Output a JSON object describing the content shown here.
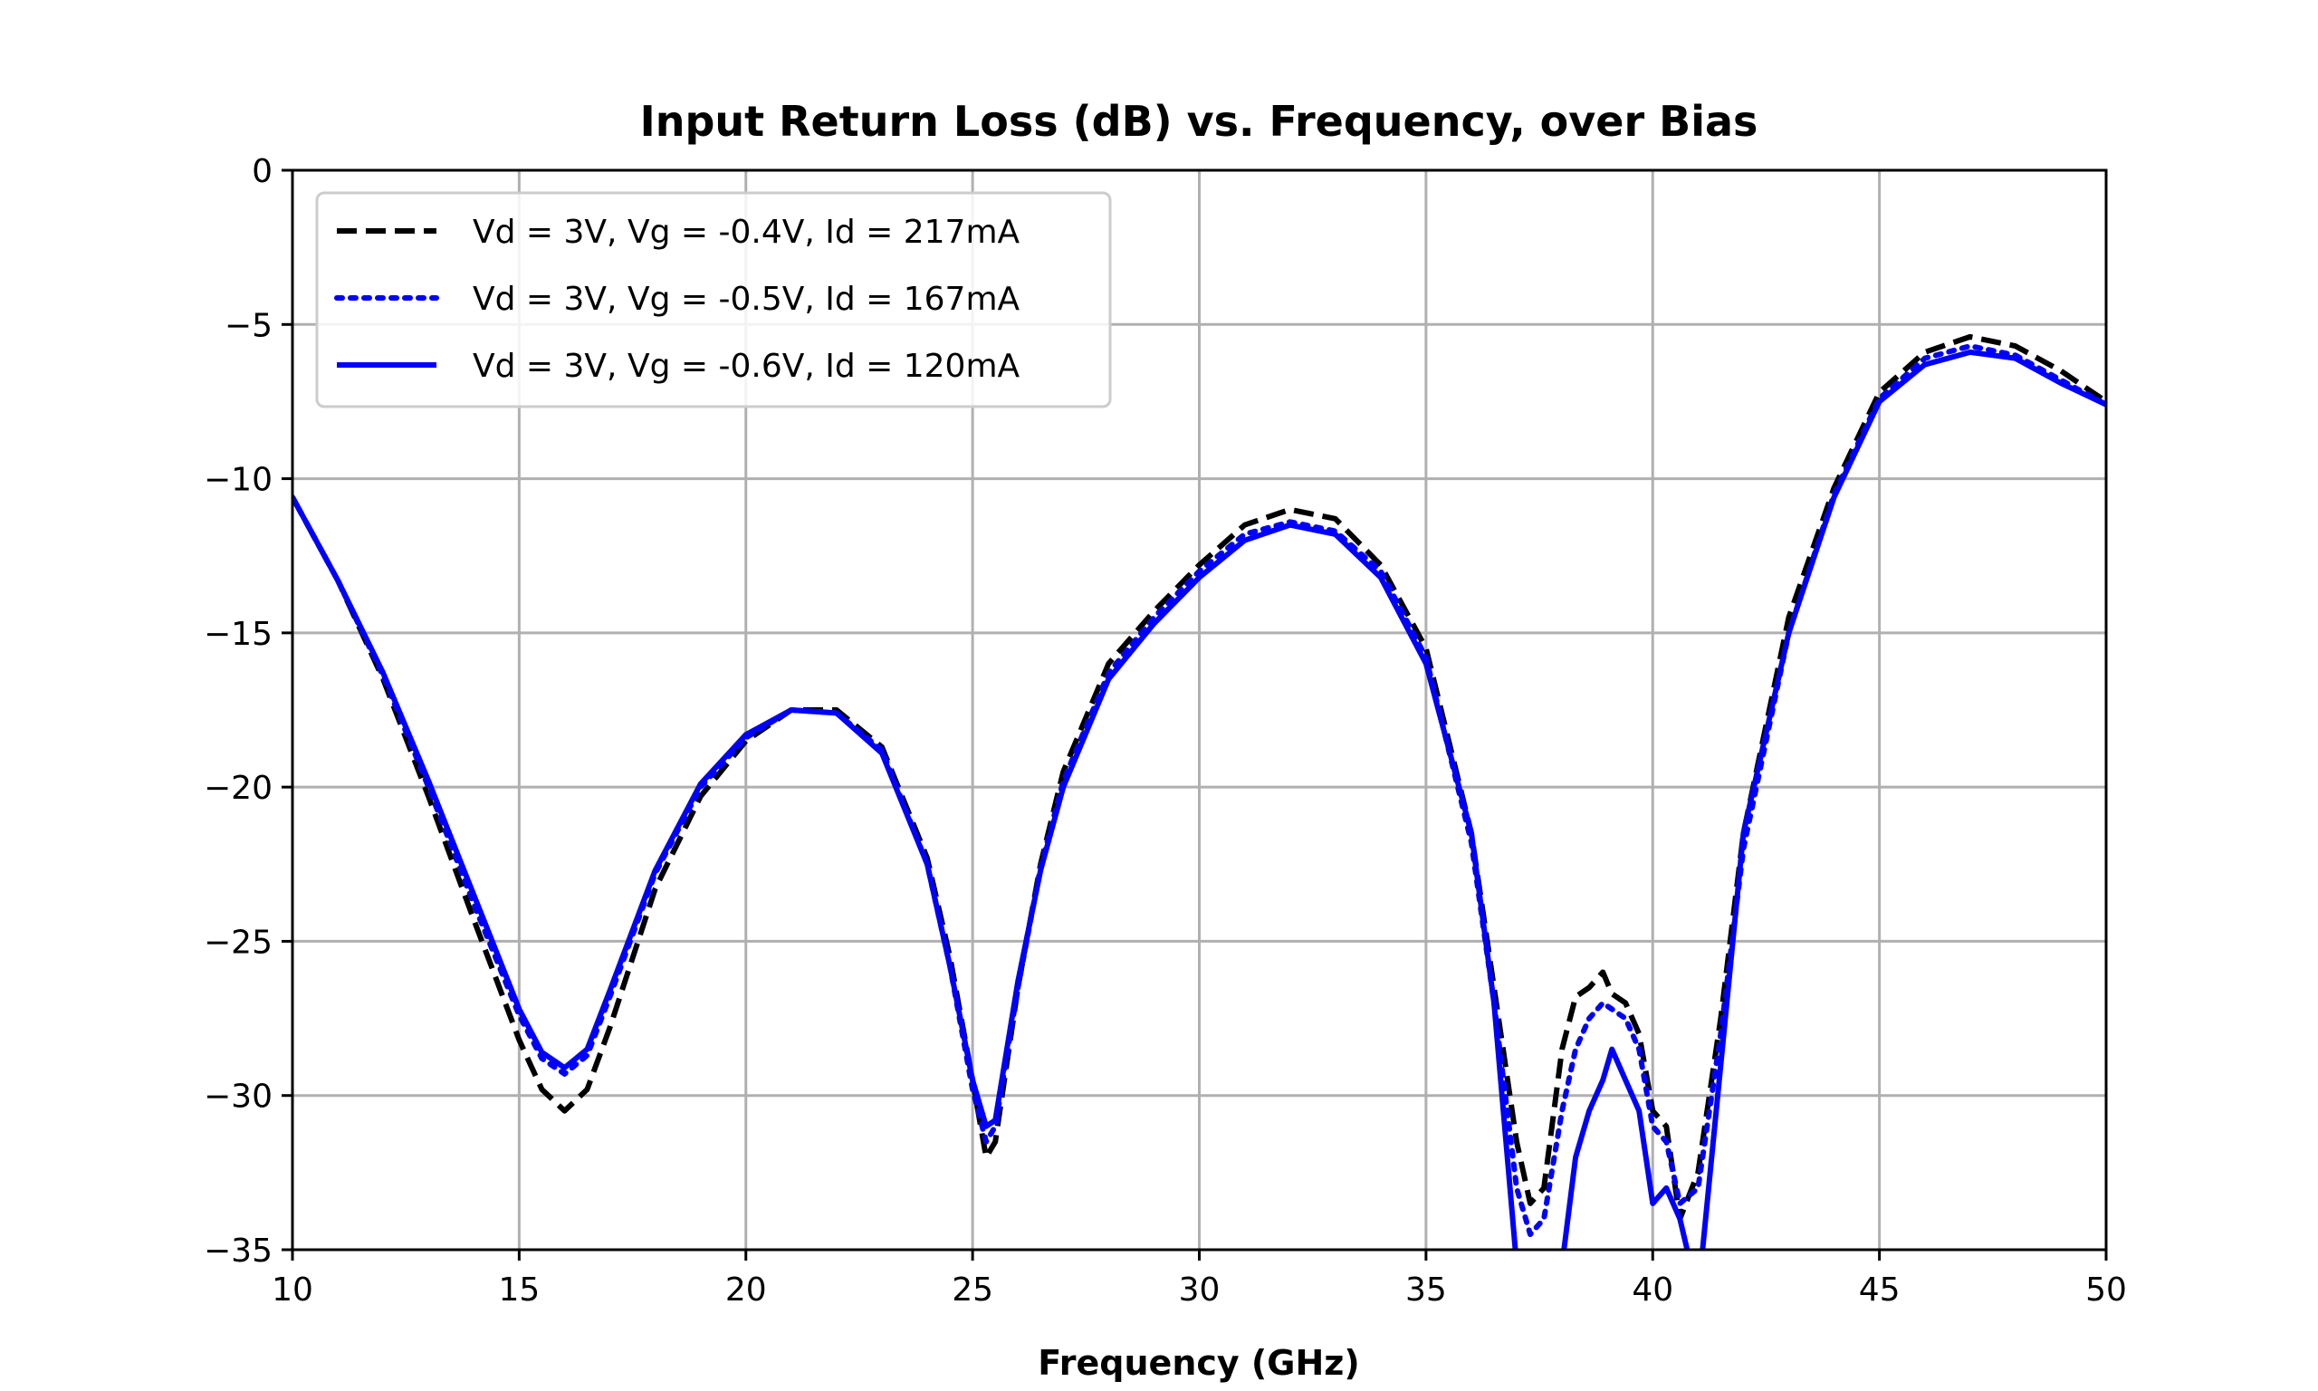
{
  "chart_data": {
    "type": "line",
    "title": "Input Return Loss (dB) vs. Frequency, over Bias",
    "xlabel": "Frequency (GHz)",
    "ylabel": "",
    "xlim": [
      10,
      50
    ],
    "ylim": [
      -35,
      0
    ],
    "xticks": [
      10,
      15,
      20,
      25,
      30,
      35,
      40,
      45,
      50
    ],
    "yticks": [
      0,
      -5,
      -10,
      -15,
      -20,
      -25,
      -30,
      -35
    ],
    "xtick_labels": [
      "10",
      "15",
      "20",
      "25",
      "30",
      "35",
      "40",
      "45",
      "50"
    ],
    "ytick_labels": [
      "0",
      "−5",
      "−10",
      "−15",
      "−20",
      "−25",
      "−30",
      "−35"
    ],
    "grid": true,
    "legend_position": "top-left",
    "series": [
      {
        "name": "Vd = 3V, Vg = -0.4V, Id = 217mA",
        "color": "#000000",
        "style": "dashed",
        "x": [
          10,
          11,
          12,
          13,
          14,
          15,
          15.5,
          16,
          16.5,
          17,
          18,
          19,
          20,
          21,
          22,
          23,
          24,
          24.5,
          25,
          25.3,
          25.5,
          26,
          26.5,
          27,
          28,
          29,
          30,
          31,
          32,
          33,
          34,
          35,
          36,
          36.5,
          37,
          37.3,
          37.6,
          38,
          38.3,
          38.6,
          38.9,
          39.1,
          39.4,
          39.7,
          40,
          40.3,
          40.6,
          41,
          41.5,
          42,
          43,
          44,
          45,
          46,
          47,
          48,
          49,
          50
        ],
        "y": [
          -10.6,
          -13.3,
          -16.5,
          -20.3,
          -24.3,
          -28.2,
          -29.8,
          -30.5,
          -29.8,
          -27.8,
          -23.3,
          -20.3,
          -18.5,
          -17.5,
          -17.5,
          -18.7,
          -22.3,
          -25.5,
          -29.5,
          -32.0,
          -31.5,
          -26.5,
          -22.5,
          -19.5,
          -16.0,
          -14.3,
          -12.8,
          -11.5,
          -11.0,
          -11.3,
          -12.8,
          -15.5,
          -21.5,
          -26.5,
          -31.5,
          -33.5,
          -33.0,
          -28.5,
          -26.8,
          -26.5,
          -26.0,
          -26.7,
          -27.0,
          -28.0,
          -30.5,
          -31.0,
          -34.0,
          -32.5,
          -27.5,
          -21.5,
          -14.5,
          -10.3,
          -7.2,
          -5.9,
          -5.4,
          -5.7,
          -6.5,
          -7.5
        ]
      },
      {
        "name": "Vd = 3V, Vg = -0.5V, Id = 167mA",
        "color": "#0000ff",
        "style": "dotted",
        "x": [
          10,
          11,
          12,
          13,
          14,
          15,
          15.5,
          16,
          16.5,
          17,
          18,
          19,
          20,
          21,
          22,
          23,
          24,
          24.5,
          25,
          25.3,
          25.5,
          26,
          26.5,
          27,
          28,
          29,
          30,
          31,
          32,
          33,
          34,
          35,
          36,
          36.5,
          37,
          37.3,
          37.6,
          38,
          38.3,
          38.6,
          38.9,
          39.1,
          39.4,
          39.7,
          40,
          40.3,
          40.6,
          41,
          41.5,
          42,
          43,
          44,
          45,
          46,
          47,
          48,
          49,
          50
        ],
        "y": [
          -10.6,
          -13.3,
          -16.4,
          -20.0,
          -23.8,
          -27.4,
          -28.8,
          -29.3,
          -28.7,
          -26.8,
          -22.8,
          -20.0,
          -18.4,
          -17.5,
          -17.6,
          -18.8,
          -22.5,
          -25.8,
          -29.8,
          -31.5,
          -31.0,
          -26.5,
          -22.6,
          -19.8,
          -16.3,
          -14.5,
          -13.0,
          -11.8,
          -11.4,
          -11.7,
          -13.0,
          -15.8,
          -21.8,
          -27.0,
          -33.0,
          -34.5,
          -34.0,
          -30.5,
          -28.5,
          -27.5,
          -27.0,
          -27.2,
          -27.5,
          -28.5,
          -31.0,
          -31.5,
          -33.5,
          -33.0,
          -28.0,
          -22.0,
          -15.0,
          -10.5,
          -7.4,
          -6.1,
          -5.7,
          -6.0,
          -6.8,
          -7.6
        ]
      },
      {
        "name": "Vd = 3V, Vg = -0.6V, Id = 120mA",
        "color": "#0000ff",
        "style": "solid",
        "x": [
          10,
          11,
          12,
          13,
          14,
          15,
          15.5,
          16,
          16.5,
          17,
          18,
          19,
          20,
          21,
          22,
          23,
          24,
          24.5,
          25,
          25.3,
          25.5,
          26,
          26.5,
          27,
          28,
          29,
          30,
          31,
          32,
          33,
          34,
          35,
          36,
          36.5,
          37,
          37.3,
          37.6,
          38,
          38.3,
          38.6,
          38.9,
          39.1,
          39.4,
          39.7,
          40,
          40.3,
          40.6,
          41,
          41.5,
          42,
          43,
          44,
          45,
          46,
          47,
          48,
          49,
          50
        ],
        "y": [
          -10.6,
          -13.3,
          -16.3,
          -19.8,
          -23.5,
          -27.2,
          -28.6,
          -29.1,
          -28.5,
          -26.6,
          -22.7,
          -19.9,
          -18.3,
          -17.5,
          -17.6,
          -18.9,
          -22.5,
          -25.8,
          -29.5,
          -31.0,
          -30.8,
          -26.3,
          -22.7,
          -20.0,
          -16.5,
          -14.7,
          -13.2,
          -12.0,
          -11.5,
          -11.8,
          -13.2,
          -16.0,
          -21.5,
          -27.0,
          -35.5,
          -37.0,
          -37.0,
          -35.5,
          -32.0,
          -30.5,
          -29.5,
          -28.5,
          -29.5,
          -30.5,
          -33.5,
          -33.0,
          -34.0,
          -36.5,
          -29.0,
          -21.5,
          -15.0,
          -10.6,
          -7.5,
          -6.3,
          -5.9,
          -6.1,
          -6.9,
          -7.6
        ]
      }
    ]
  }
}
